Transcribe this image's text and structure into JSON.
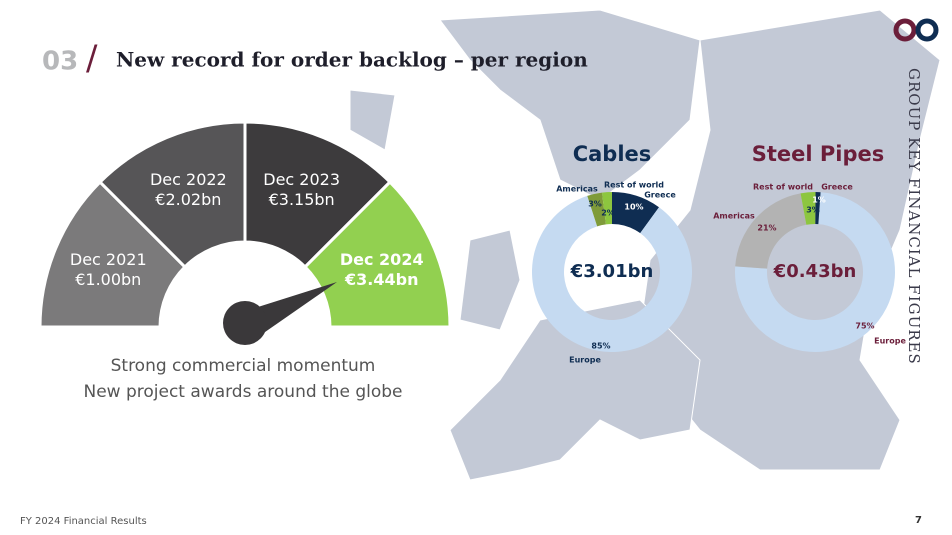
{
  "header": {
    "section_number": "03",
    "separator": "/",
    "title": "New record for order backlog – per region"
  },
  "side_label": "GROUP KEY FINANCIAL FIGURES",
  "gauge": {
    "segments": [
      {
        "period": "Dec 2021",
        "value": "€1.00bn",
        "color": "#7b7a7b"
      },
      {
        "period": "Dec 2022",
        "value": "€2.02bn",
        "color": "#565557"
      },
      {
        "period": "Dec 2023",
        "value": "€3.15bn",
        "color": "#3d3b3d"
      },
      {
        "period": "Dec 2024",
        "value": "€3.44bn",
        "color": "#92d050"
      }
    ],
    "caption": [
      "Strong commercial momentum",
      "New project awards around the globe"
    ]
  },
  "chart_data": [
    {
      "type": "pie",
      "title": "Cables",
      "center_label": "€3.01bn",
      "categories": [
        "Rest of world",
        "Europe",
        "Americas",
        "Greece"
      ],
      "values": [
        10,
        85,
        3,
        2
      ],
      "value_labels": [
        "10%",
        "85%",
        "3%",
        "2%"
      ],
      "colors": [
        "#0f2d52",
        "#c5daf1",
        "#7f9b3a",
        "#8dc63f"
      ]
    },
    {
      "type": "pie",
      "title": "Steel Pipes",
      "center_label": "€0.43bn",
      "categories": [
        "Europe",
        "Americas",
        "Greece",
        "Rest of world"
      ],
      "values": [
        75,
        21,
        3,
        1
      ],
      "value_labels": [
        "75%",
        "21%",
        "3%",
        "1%"
      ],
      "colors": [
        "#c5daf1",
        "#b3b3b3",
        "#8dc63f",
        "#0f2d52"
      ]
    }
  ],
  "footer": {
    "text": "FY 2024  Financial Results",
    "page": "7"
  }
}
